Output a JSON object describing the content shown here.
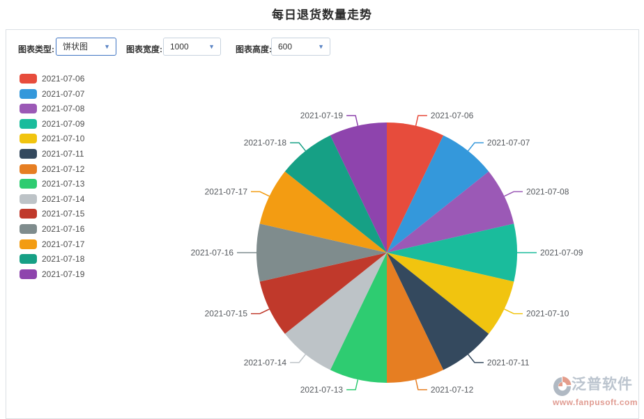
{
  "page": {
    "title": "每日退货数量走势"
  },
  "toolbar": {
    "chart_type_label": "图表类型:",
    "chart_type_value": "饼状图",
    "chart_width_label": "图表宽度:",
    "chart_width_value": "1000",
    "chart_height_label": "图表高度:",
    "chart_height_value": "600",
    "dropdown_arrow_icon": "▼"
  },
  "chart_data": {
    "type": "pie",
    "title": "每日退货数量走势",
    "categories": [
      "2021-07-06",
      "2021-07-07",
      "2021-07-08",
      "2021-07-09",
      "2021-07-10",
      "2021-07-11",
      "2021-07-12",
      "2021-07-13",
      "2021-07-14",
      "2021-07-15",
      "2021-07-16",
      "2021-07-17",
      "2021-07-18",
      "2021-07-19"
    ],
    "values": [
      1,
      1,
      1,
      1,
      1,
      1,
      1,
      1,
      1,
      1,
      1,
      1,
      1,
      1
    ],
    "percent_each": "7.14%",
    "colors": [
      "#e74c3c",
      "#3498db",
      "#9b59b6",
      "#1abc9c",
      "#f1c40f",
      "#34495e",
      "#e67e22",
      "#2ecc71",
      "#bdc3c7",
      "#c0392b",
      "#7f8c8d",
      "#f39c12",
      "#16a085",
      "#8e44ad"
    ],
    "legend_position": "left-top-vertical",
    "labels": "outside-with-leader-lines",
    "start_angle_deg": 0,
    "direction": "clockwise"
  },
  "watermark": {
    "name": "泛普软件",
    "url": "www.fanpusoft.com"
  }
}
